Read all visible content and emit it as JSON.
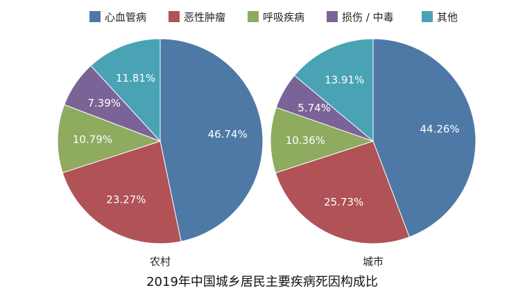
{
  "chart_data": {
    "type": "pie",
    "title": "2019年中国城乡居民主要疾病死因构成比",
    "legend_position": "top",
    "categories": [
      "心血管病",
      "恶性肿瘤",
      "呼吸疾病",
      "损伤 / 中毒",
      "其他"
    ],
    "colors": [
      "#4e79a7",
      "#b05256",
      "#8eab60",
      "#7a6497",
      "#4aa3b4"
    ],
    "series": [
      {
        "name": "农村",
        "values": [
          46.74,
          23.27,
          10.79,
          7.39,
          11.81
        ],
        "labels": [
          "46.74%",
          "23.27%",
          "10.79%",
          "7.39%",
          "11.81%"
        ]
      },
      {
        "name": "城市",
        "values": [
          44.26,
          25.73,
          10.36,
          5.74,
          13.91
        ],
        "labels": [
          "44.26%",
          "25.73%",
          "10.36%",
          "5.74%",
          "13.91%"
        ]
      }
    ]
  }
}
